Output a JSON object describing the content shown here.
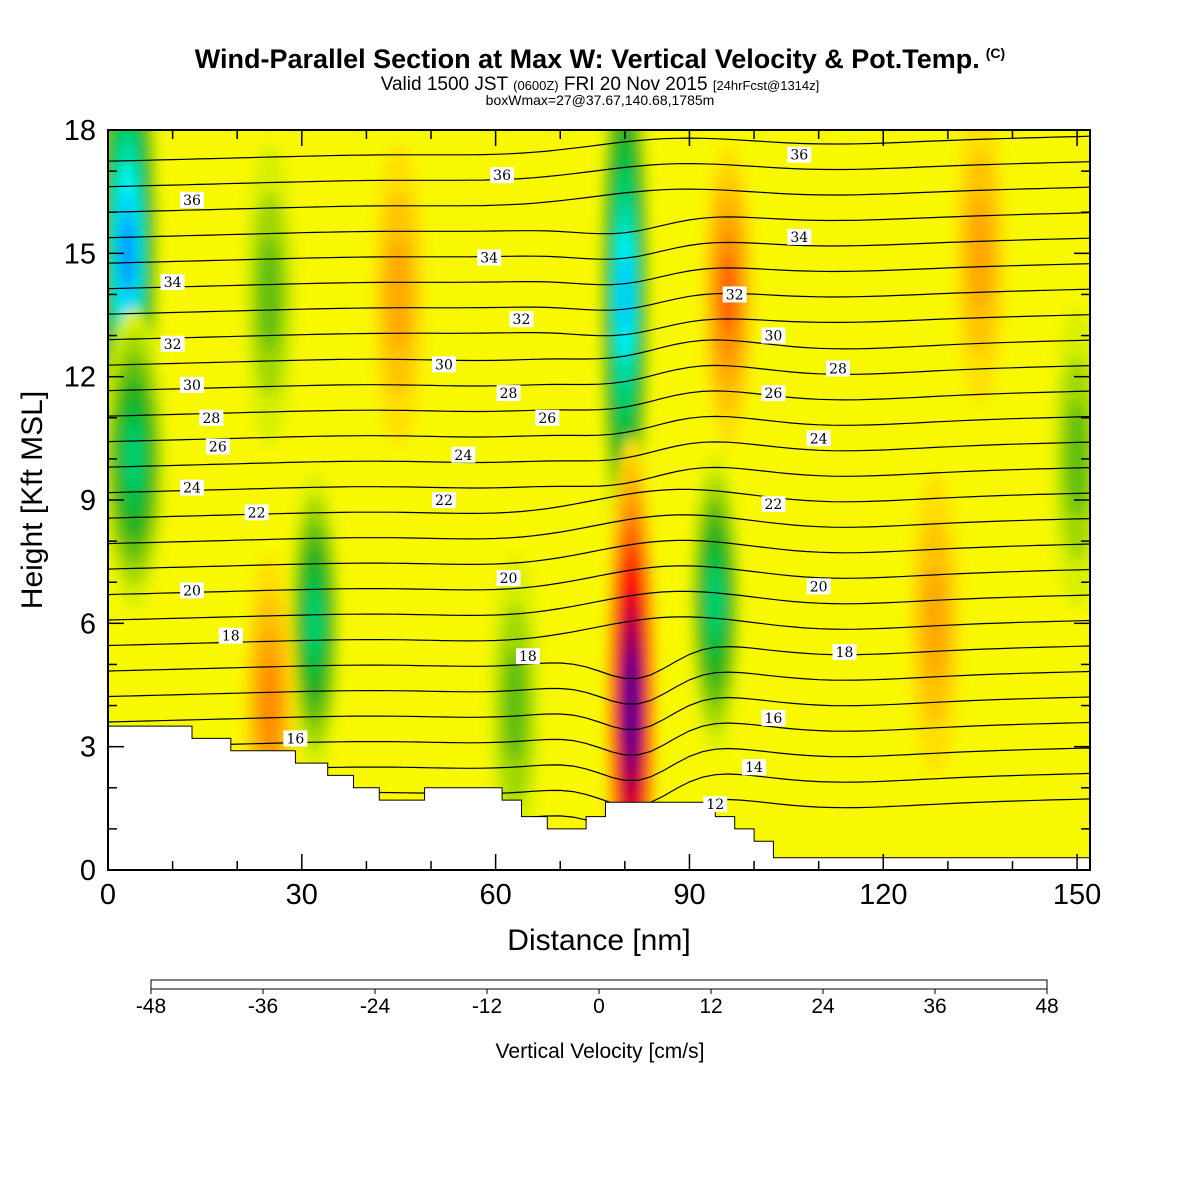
{
  "header": {
    "title": "Wind-Parallel Section at Max W: Vertical Velocity & Pot.Temp.",
    "copyright": "(C)",
    "valid_prefix": "Valid 1500 JST",
    "valid_utc": "(0600Z)",
    "valid_date": "FRI 20 Nov 2015",
    "forecast": "[24hrFcst@1314z]",
    "box_info": "boxWmax=27@37.67,140.68,1785m"
  },
  "chart_data": {
    "type": "heatmap",
    "title": "Wind-Parallel Section at Max W: Vertical Velocity & Pot.Temp.",
    "xlabel": "Distance [nm]",
    "ylabel": "Height [Kft MSL]",
    "xlim": [
      0,
      152
    ],
    "ylim": [
      0,
      18
    ],
    "xticks": [
      0,
      30,
      60,
      90,
      120,
      150
    ],
    "yticks": [
      0,
      3,
      6,
      9,
      12,
      15,
      18
    ],
    "colorbar": {
      "label": "Vertical Velocity [cm/s]",
      "ticks": [
        -48,
        -36,
        -24,
        -12,
        0,
        12,
        24,
        36,
        48
      ],
      "colors": [
        "#0014ff",
        "#0050ff",
        "#0090ff",
        "#00c8ff",
        "#00f5ff",
        "#00e0b0",
        "#00d070",
        "#00c040",
        "#20b020",
        "#60c010",
        "#a0d800",
        "#d8f000",
        "#f8f800",
        "#ffe000",
        "#ffc400",
        "#ffa800",
        "#ff8c00",
        "#ff6400",
        "#ff3000",
        "#ff0000",
        "#d8002a",
        "#b00050",
        "#880070",
        "#5c0090"
      ]
    },
    "vertical_velocity_features": [
      {
        "x": 3,
        "y": 15,
        "w": -40
      },
      {
        "x": 4,
        "y": 10,
        "w": -22
      },
      {
        "x": 25,
        "y": 14,
        "w": -12
      },
      {
        "x": 32,
        "y": 6,
        "w": -22
      },
      {
        "x": 25,
        "y": 4,
        "w": 14
      },
      {
        "x": 45,
        "y": 14,
        "w": 10
      },
      {
        "x": 63,
        "y": 4,
        "w": -12
      },
      {
        "x": 80,
        "y": 14,
        "w": -34
      },
      {
        "x": 81,
        "y": 4,
        "w": 48
      },
      {
        "x": 94,
        "y": 6.5,
        "w": -22
      },
      {
        "x": 96,
        "y": 14,
        "w": 20
      },
      {
        "x": 135,
        "y": 15,
        "w": 10
      },
      {
        "x": 150,
        "y": 10,
        "w": -12
      },
      {
        "x": 128,
        "y": 6,
        "w": 10
      }
    ],
    "potential_temperature_labels": [
      {
        "value": "36",
        "x": 13,
        "y": 16.3
      },
      {
        "value": "36",
        "x": 61,
        "y": 16.9
      },
      {
        "value": "36",
        "x": 107,
        "y": 17.4
      },
      {
        "value": "34",
        "x": 10,
        "y": 14.3
      },
      {
        "value": "34",
        "x": 59,
        "y": 14.9
      },
      {
        "value": "34",
        "x": 107,
        "y": 15.4
      },
      {
        "value": "32",
        "x": 10,
        "y": 12.8
      },
      {
        "value": "32",
        "x": 64,
        "y": 13.4
      },
      {
        "value": "32",
        "x": 97,
        "y": 14.0
      },
      {
        "value": "30",
        "x": 13,
        "y": 11.8
      },
      {
        "value": "30",
        "x": 52,
        "y": 12.3
      },
      {
        "value": "30",
        "x": 103,
        "y": 13.0
      },
      {
        "value": "28",
        "x": 16,
        "y": 11.0
      },
      {
        "value": "28",
        "x": 62,
        "y": 11.6
      },
      {
        "value": "28",
        "x": 113,
        "y": 12.2
      },
      {
        "value": "26",
        "x": 17,
        "y": 10.3
      },
      {
        "value": "26",
        "x": 68,
        "y": 11.0
      },
      {
        "value": "26",
        "x": 103,
        "y": 11.6
      },
      {
        "value": "24",
        "x": 13,
        "y": 9.3
      },
      {
        "value": "24",
        "x": 55,
        "y": 10.1
      },
      {
        "value": "24",
        "x": 110,
        "y": 10.5
      },
      {
        "value": "22",
        "x": 23,
        "y": 8.7
      },
      {
        "value": "22",
        "x": 52,
        "y": 9.0
      },
      {
        "value": "22",
        "x": 103,
        "y": 8.9
      },
      {
        "value": "20",
        "x": 13,
        "y": 6.8
      },
      {
        "value": "20",
        "x": 62,
        "y": 7.1
      },
      {
        "value": "20",
        "x": 110,
        "y": 6.9
      },
      {
        "value": "18",
        "x": 19,
        "y": 5.7
      },
      {
        "value": "18",
        "x": 65,
        "y": 5.2
      },
      {
        "value": "18",
        "x": 114,
        "y": 5.3
      },
      {
        "value": "16",
        "x": 29,
        "y": 3.2
      },
      {
        "value": "16",
        "x": 103,
        "y": 3.7
      },
      {
        "value": "14",
        "x": 100,
        "y": 2.5
      },
      {
        "value": "12",
        "x": 94,
        "y": 1.6
      }
    ],
    "terrain_profile": [
      [
        0,
        3.5
      ],
      [
        13,
        3.5
      ],
      [
        13,
        3.2
      ],
      [
        19,
        3.2
      ],
      [
        19,
        2.9
      ],
      [
        29,
        2.9
      ],
      [
        29,
        2.6
      ],
      [
        34,
        2.6
      ],
      [
        34,
        2.3
      ],
      [
        38,
        2.3
      ],
      [
        38,
        2.0
      ],
      [
        42,
        2.0
      ],
      [
        42,
        1.7
      ],
      [
        49,
        1.7
      ],
      [
        49,
        2.0
      ],
      [
        57,
        2.0
      ],
      [
        57,
        2.0
      ],
      [
        61,
        2.0
      ],
      [
        61,
        1.7
      ],
      [
        64,
        1.7
      ],
      [
        64,
        1.3
      ],
      [
        68,
        1.3
      ],
      [
        68,
        1.0
      ],
      [
        74,
        1.0
      ],
      [
        74,
        1.3
      ],
      [
        77,
        1.3
      ],
      [
        77,
        1.65
      ],
      [
        94,
        1.65
      ],
      [
        94,
        1.3
      ],
      [
        97,
        1.3
      ],
      [
        97,
        1.0
      ],
      [
        100,
        1.0
      ],
      [
        100,
        0.7
      ],
      [
        103,
        0.7
      ],
      [
        103,
        0.3
      ],
      [
        152,
        0.3
      ]
    ]
  }
}
